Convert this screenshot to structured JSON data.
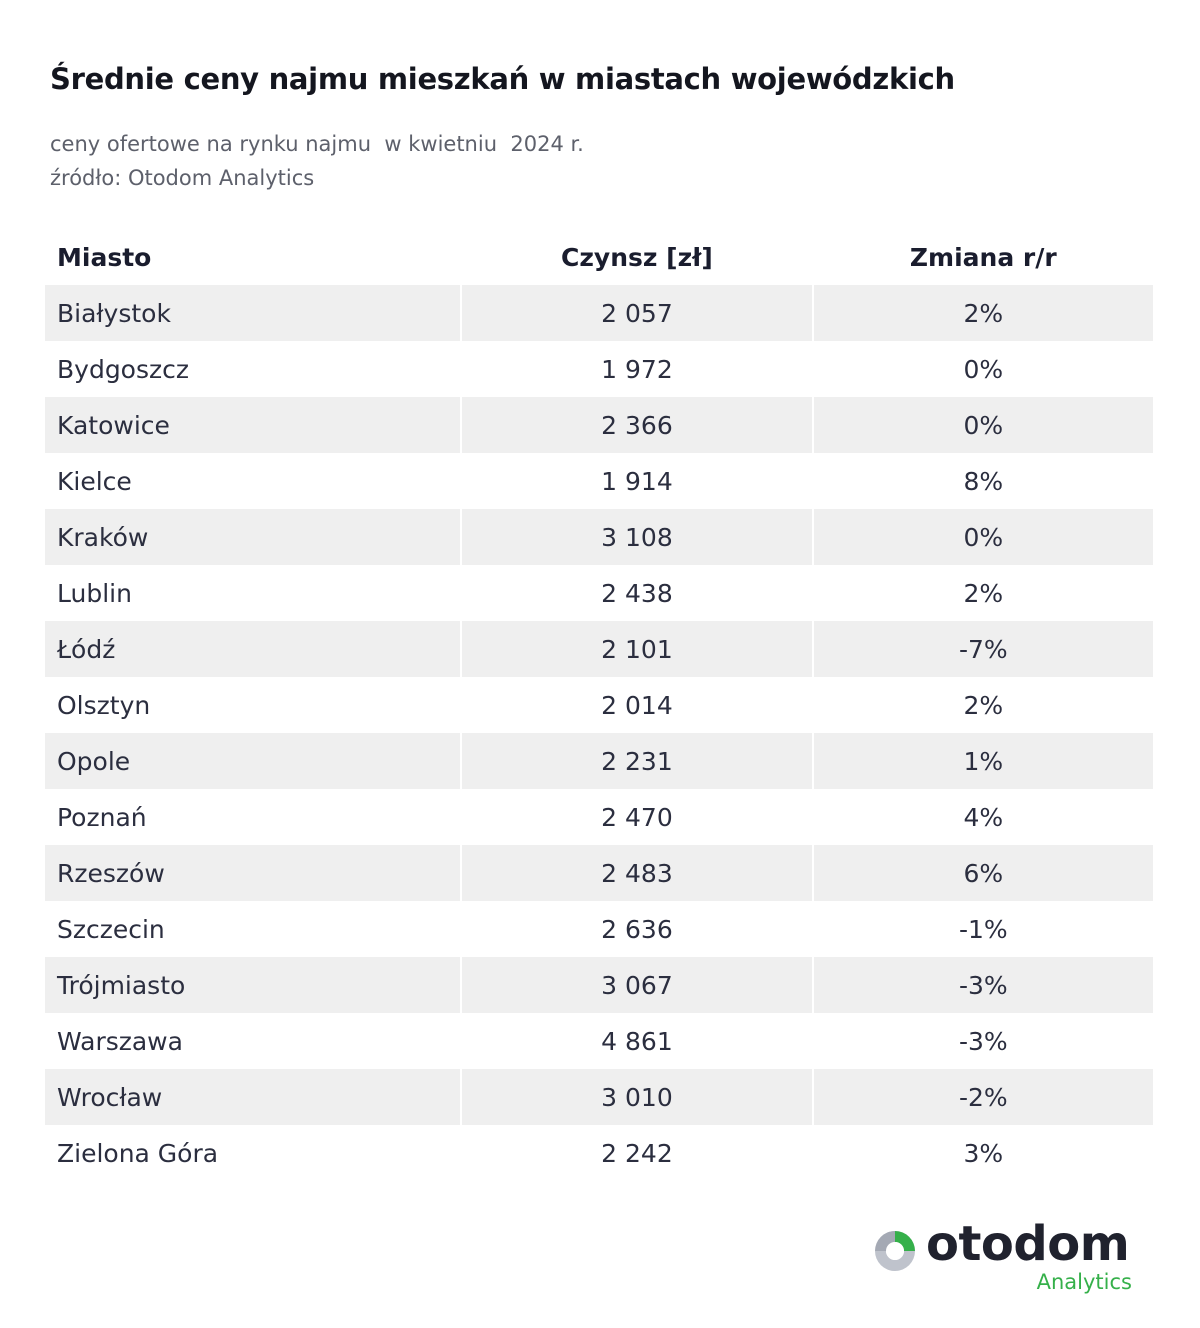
{
  "chart_data": {
    "type": "table",
    "title": "Średnie ceny najmu mieszkań w miastach wojewódzkich",
    "subtitle_lines": [
      "ceny ofertowe na rynku najmu  w kwietniu  2024 r.",
      "źródło: Otodom Analytics"
    ],
    "columns": [
      "Miasto",
      "Czynsz [zł]",
      "Zmiana r/r"
    ],
    "rows": [
      [
        "Białystok",
        "2 057",
        "2%"
      ],
      [
        "Bydgoszcz",
        "1 972",
        "0%"
      ],
      [
        "Katowice",
        "2 366",
        "0%"
      ],
      [
        "Kielce",
        "1 914",
        "8%"
      ],
      [
        "Kraków",
        "3 108",
        "0%"
      ],
      [
        "Lublin",
        "2 438",
        "2%"
      ],
      [
        "Łódź",
        "2 101",
        "-7%"
      ],
      [
        "Olsztyn",
        "2 014",
        "2%"
      ],
      [
        "Opole",
        "2 231",
        "1%"
      ],
      [
        "Poznań",
        "2 470",
        "4%"
      ],
      [
        "Rzeszów",
        "2 483",
        "6%"
      ],
      [
        "Szczecin",
        "2 636",
        "-1%"
      ],
      [
        "Trójmiasto",
        "3 067",
        "-3%"
      ],
      [
        "Warszawa",
        "4 861",
        "-3%"
      ],
      [
        "Wrocław",
        "3 010",
        "-2%"
      ],
      [
        "Zielona Góra",
        "2 242",
        "3%"
      ]
    ]
  },
  "logo": {
    "brand": "otodom",
    "sub": "Analytics",
    "mark_icon": "otodom-pie-mark-icon"
  },
  "colors": {
    "row_shade": "#efefef",
    "accent_green": "#35b04a",
    "text_dark": "#1f2233",
    "text_muted": "#5d606b"
  }
}
